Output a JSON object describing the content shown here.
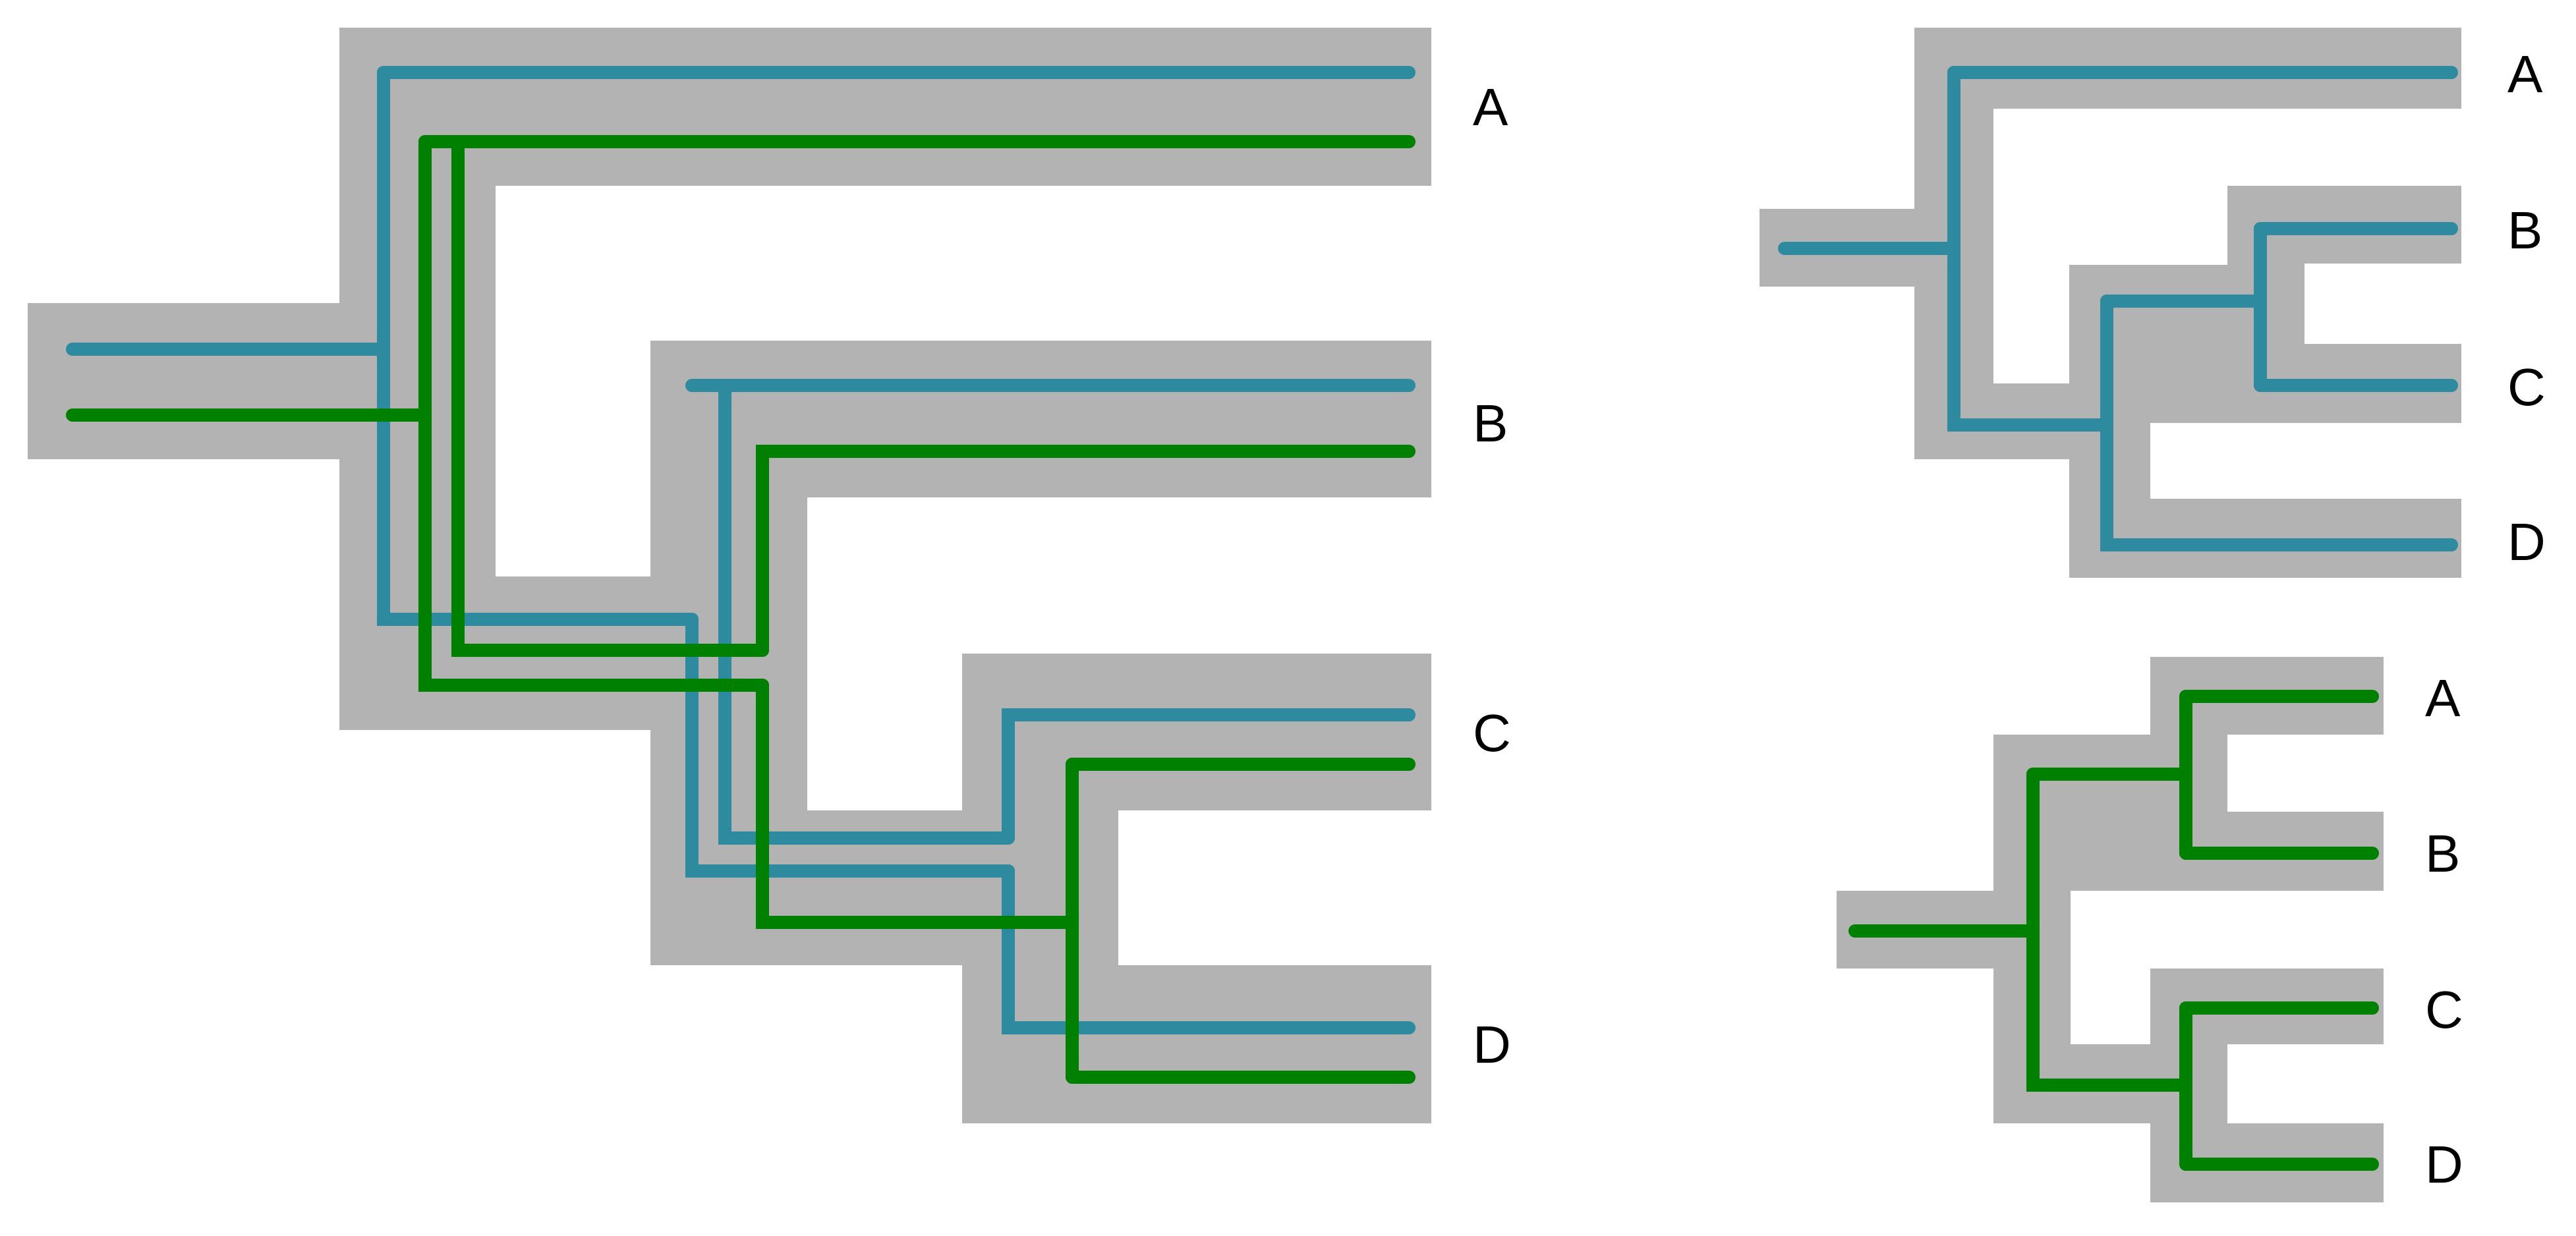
{
  "colors": {
    "species_tree_fill": "#b3b3b3",
    "gene_tree_blue": "#2e8b9f",
    "gene_tree_green": "#008000",
    "label_color": "#000000",
    "background": "#ffffff"
  },
  "left_panel": {
    "leaf_labels": [
      "A",
      "B",
      "C",
      "D"
    ]
  },
  "right_top_panel": {
    "leaf_labels": [
      "A",
      "B",
      "C",
      "D"
    ]
  },
  "right_bottom_panel": {
    "leaf_labels": [
      "A",
      "B",
      "C",
      "D"
    ]
  }
}
